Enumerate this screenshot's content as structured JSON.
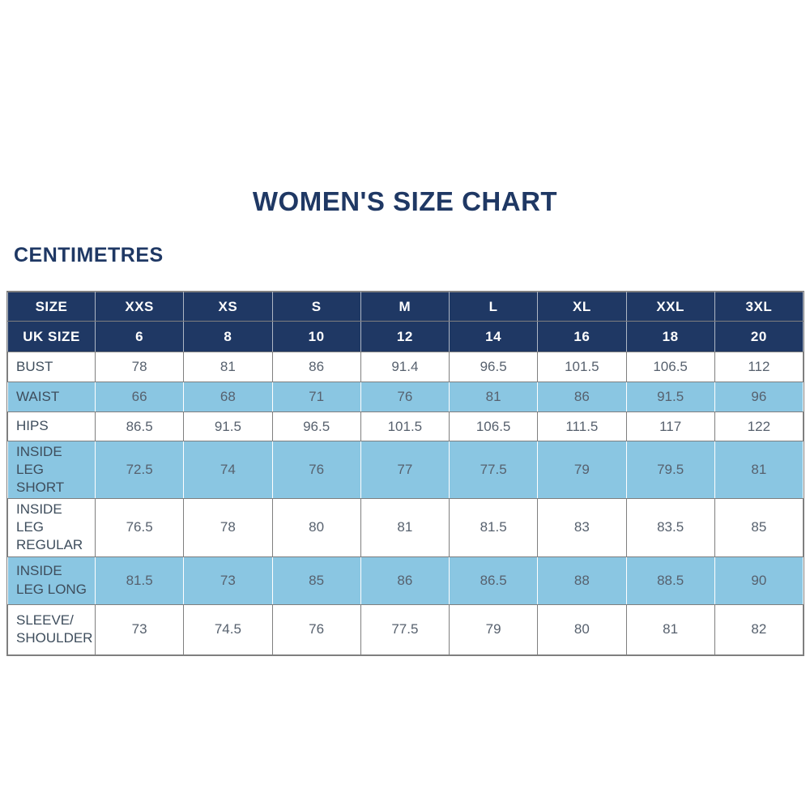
{
  "page": {
    "title": "WOMEN'S SIZE CHART",
    "unit_label": "CENTIMETRES"
  },
  "colors": {
    "navy_header": "#1f3864",
    "light_blue_row": "#8ac6e2",
    "white_row": "#ffffff",
    "border_gray": "#7f7f7f",
    "header_text": "#ffffff",
    "label_text": "#3e4d5c",
    "value_text": "#57616e",
    "title_text": "#1f3864"
  },
  "chart_data": {
    "type": "table",
    "title": "WOMEN'S SIZE CHART",
    "unit": "CENTIMETRES",
    "columns": [
      "SIZE",
      "XXS",
      "XS",
      "S",
      "M",
      "L",
      "XL",
      "XXL",
      "3XL"
    ],
    "uk_size_row": [
      "UK SIZE",
      "6",
      "8",
      "10",
      "12",
      "14",
      "16",
      "18",
      "20"
    ],
    "rows": [
      {
        "label": "BUST",
        "values": [
          "78",
          "81",
          "86",
          "91.4",
          "96.5",
          "101.5",
          "106.5",
          "112"
        ]
      },
      {
        "label": "WAIST",
        "values": [
          "66",
          "68",
          "71",
          "76",
          "81",
          "86",
          "91.5",
          "96"
        ]
      },
      {
        "label": "HIPS",
        "values": [
          "86.5",
          "91.5",
          "96.5",
          "101.5",
          "106.5",
          "111.5",
          "117",
          "122"
        ]
      },
      {
        "label": "INSIDE LEG SHORT",
        "values": [
          "72.5",
          "74",
          "76",
          "77",
          "77.5",
          "79",
          "79.5",
          "81"
        ]
      },
      {
        "label": "INSIDE LEG REGULAR",
        "values": [
          "76.5",
          "78",
          "80",
          "81",
          "81.5",
          "83",
          "83.5",
          "85"
        ]
      },
      {
        "label": "INSIDE LEG LONG",
        "values": [
          "81.5",
          "73",
          "85",
          "86",
          "86.5",
          "88",
          "88.5",
          "90"
        ]
      },
      {
        "label": "SLEEVE/ SHOULDER",
        "values": [
          "73",
          "74.5",
          "76",
          "77.5",
          "79",
          "80",
          "81",
          "82"
        ]
      }
    ],
    "layout": {
      "row_striping": [
        "white",
        "blue",
        "white",
        "blue",
        "white",
        "blue",
        "white"
      ],
      "header_rows_background": "navy",
      "grid": true
    }
  }
}
